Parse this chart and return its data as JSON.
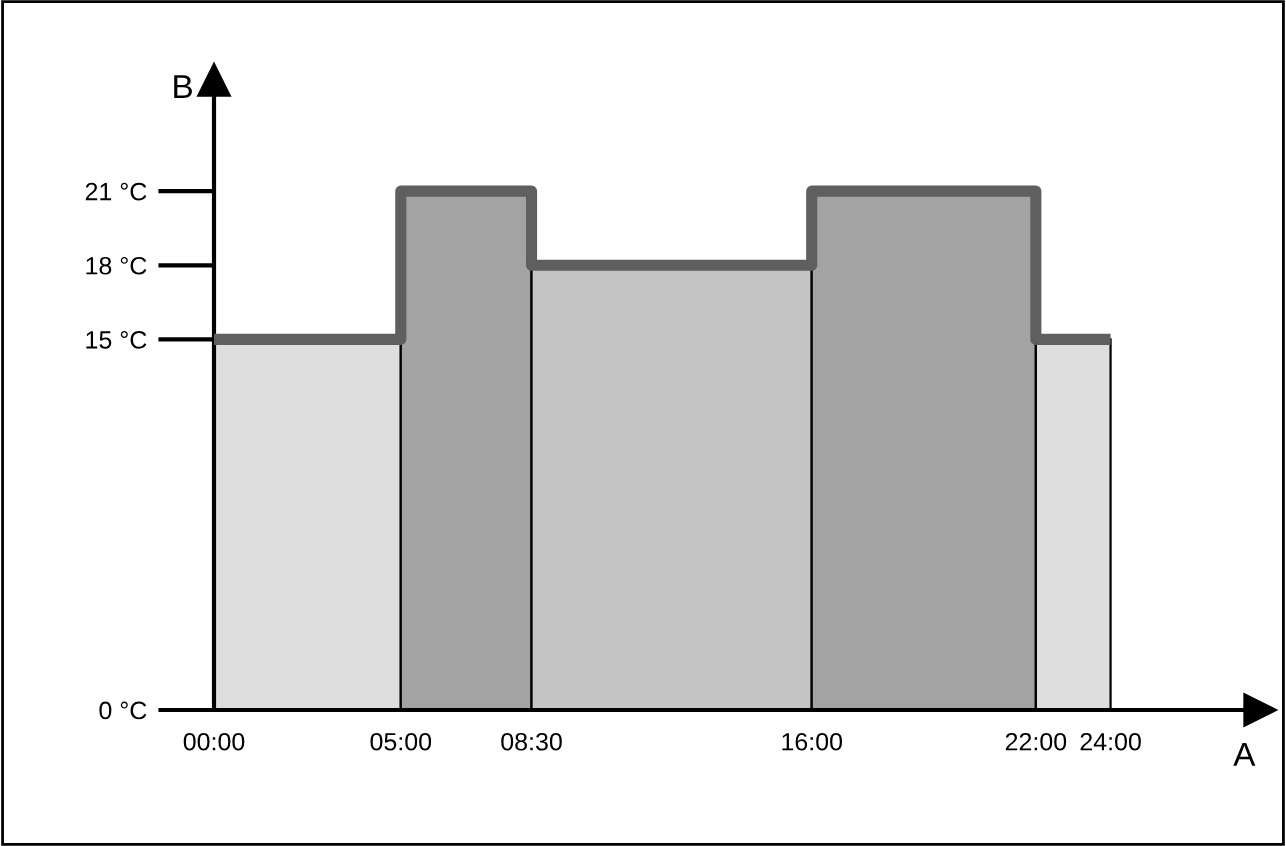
{
  "chart_data": {
    "type": "histogram",
    "xlabel": "A",
    "ylabel": "B",
    "bins": [
      0,
      5,
      8.5,
      16,
      22,
      24
    ],
    "series": [
      {
        "type": "histogram",
        "values": [
          15,
          21,
          18,
          21,
          15
        ],
        "colors": [
          "#dedede",
          "#a3a3a3",
          "#c4c4c4",
          "#a3a3a3",
          "#dedede"
        ]
      },
      {
        "type": "step",
        "x": [
          0,
          5,
          8.5,
          16,
          22,
          24
        ],
        "values": [
          15,
          21,
          18,
          21,
          15,
          15
        ],
        "color": "#5f5f5f"
      }
    ],
    "xlim": [
      0,
      28
    ],
    "ylim": [
      0,
      25.5
    ],
    "xticks": [
      {
        "value": 0,
        "label": "00:00"
      },
      {
        "value": 5,
        "label": "05:00"
      },
      {
        "value": 8.5,
        "label": "08:30"
      },
      {
        "value": 16,
        "label": "16:00"
      },
      {
        "value": 22,
        "label": "22:00"
      },
      {
        "value": 24,
        "label": "24:00"
      }
    ],
    "yticks": [
      {
        "value": 0,
        "label": "0 °C"
      },
      {
        "value": 15,
        "label": "15 °C"
      },
      {
        "value": 18,
        "label": "18 °C"
      },
      {
        "value": 21,
        "label": "21 °C"
      }
    ],
    "grid": false
  }
}
